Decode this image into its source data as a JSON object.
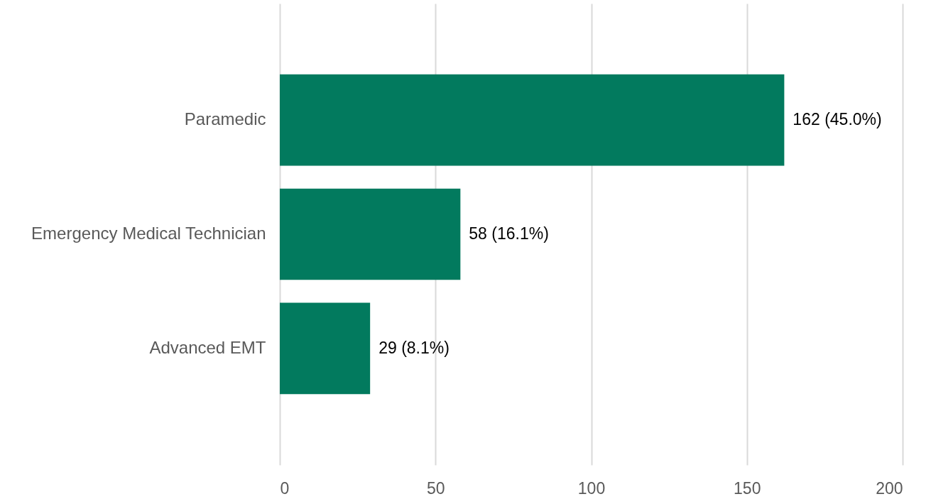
{
  "chart_data": {
    "type": "bar",
    "orientation": "horizontal",
    "categories": [
      "Paramedic",
      "Emergency Medical Technician",
      "Advanced EMT"
    ],
    "values": [
      162,
      58,
      29
    ],
    "value_labels": [
      "162 (45.0%)",
      "58 (16.1%)",
      "29 (8.1%)"
    ],
    "color": "#027a5e",
    "xlim": [
      0,
      200
    ],
    "xticks": [
      0,
      50,
      100,
      150,
      200
    ],
    "grid": "x"
  }
}
